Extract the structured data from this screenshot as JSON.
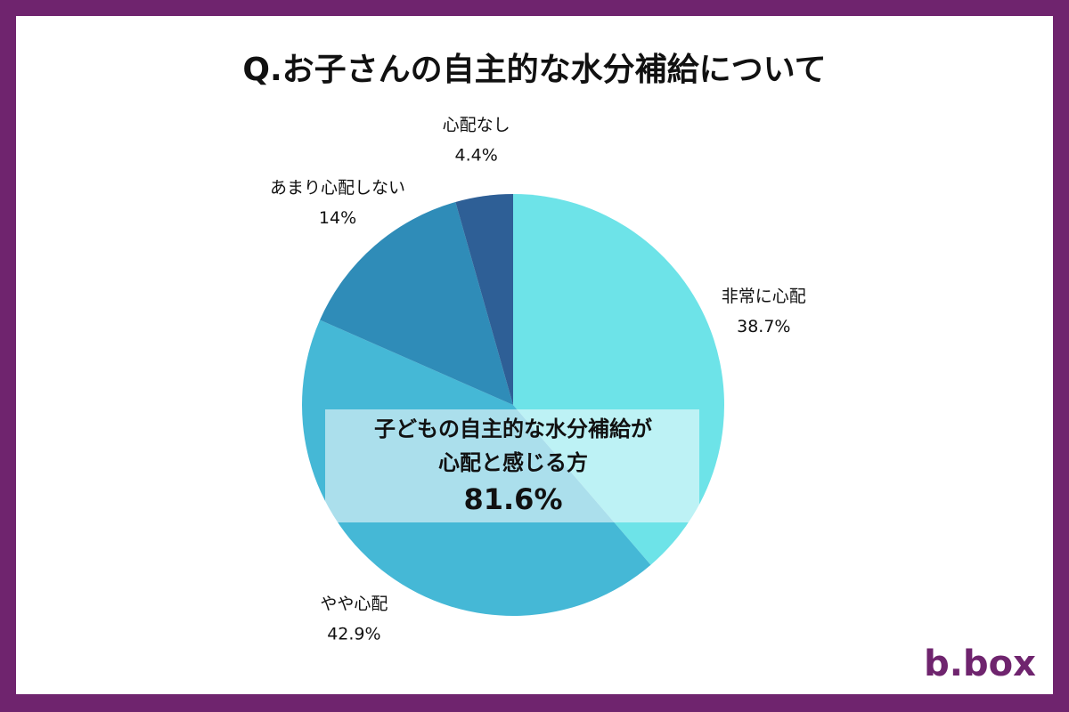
{
  "chart_data": {
    "type": "pie",
    "title": "Q.お子さんの自主的な水分補給について",
    "categories": [
      "非常に心配",
      "やや心配",
      "あまり心配しない",
      "心配なし"
    ],
    "values": [
      38.7,
      42.9,
      14,
      4.4
    ],
    "value_labels": [
      "38.7%",
      "42.9%",
      "14%",
      "4.4%"
    ],
    "colors": [
      "#6de3e8",
      "#45b8d6",
      "#2f8cb8",
      "#2e5f96"
    ],
    "callout": {
      "lines": [
        "子どもの自主的な水分補給が",
        "心配と感じる方"
      ],
      "value": 81.6,
      "value_label": "81.6%"
    },
    "brand": "b.box"
  }
}
